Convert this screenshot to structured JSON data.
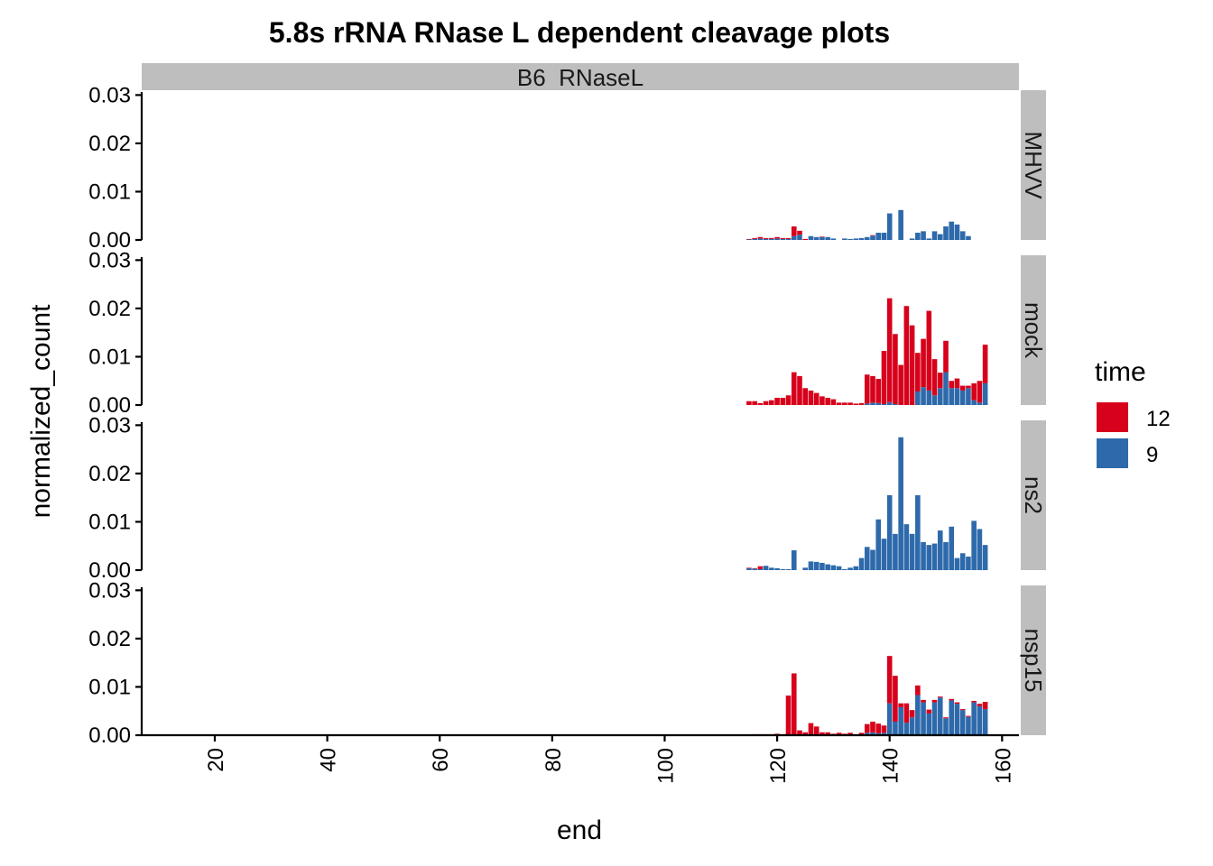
{
  "chart_data": {
    "type": "bar",
    "stacked": true,
    "title": "5.8s rRNA RNase L dependent cleavage plots",
    "xlabel": "end",
    "ylabel": "normalized_count",
    "column_facet": "B6  RNaseL",
    "xlim": [
      7,
      163
    ],
    "ylim": [
      0,
      0.031
    ],
    "x_ticks": [
      "20",
      "40",
      "60",
      "80",
      "100",
      "120",
      "140",
      "160"
    ],
    "y_ticks": [
      "0.00",
      "0.01",
      "0.02",
      "0.03"
    ],
    "grid": false,
    "legend": {
      "title": "time",
      "position": "right",
      "entries": [
        {
          "label": "12",
          "color": "#D7011B"
        },
        {
          "label": "9",
          "color": "#2E6AAB"
        }
      ]
    },
    "x": [
      115,
      116,
      117,
      118,
      119,
      120,
      121,
      122,
      123,
      124,
      125,
      126,
      127,
      128,
      129,
      130,
      131,
      132,
      133,
      134,
      135,
      136,
      137,
      138,
      139,
      140,
      141,
      142,
      143,
      144,
      145,
      146,
      147,
      148,
      149,
      150,
      151,
      152,
      153,
      154,
      155,
      156,
      157
    ],
    "panels": [
      {
        "name": "MHVV",
        "series": [
          {
            "name": "12",
            "values": [
              0.0001,
              0.0002,
              0.0003,
              0.0002,
              0.0002,
              0.0003,
              0.0002,
              0.0002,
              0.002,
              0.0008,
              0.0002,
              0,
              0,
              0.0001,
              0,
              0,
              0,
              0,
              0,
              0,
              0,
              0,
              0.0001,
              0,
              0,
              0,
              0,
              0,
              0,
              0,
              0,
              0,
              0,
              0,
              0,
              0,
              0,
              0,
              0,
              0,
              0,
              0,
              0
            ]
          },
          {
            "name": "9",
            "values": [
              0.0001,
              0.0002,
              0.0003,
              0.0002,
              0.0002,
              0.0003,
              0.0002,
              0.0002,
              0.0008,
              0.0011,
              0,
              0.0008,
              0.0006,
              0.0006,
              0.0006,
              0.0003,
              0,
              0.0003,
              0.0002,
              0.0003,
              0.0004,
              0.0006,
              0.0009,
              0.0015,
              0.0015,
              0.0055,
              0,
              0.0062,
              0,
              0.0003,
              0.0015,
              0.0018,
              0.0003,
              0.0018,
              0.0012,
              0.0028,
              0.0038,
              0.0032,
              0.0018,
              0.0008,
              0,
              0,
              0
            ]
          }
        ]
      },
      {
        "name": "mock",
        "series": [
          {
            "name": "12",
            "values": [
              0.0008,
              0.0008,
              0.0004,
              0.0008,
              0.001,
              0.0015,
              0.0015,
              0.002,
              0.0068,
              0.006,
              0.0035,
              0.003,
              0.0025,
              0.0018,
              0.0015,
              0.0012,
              0.0005,
              0.0005,
              0.0005,
              0.0003,
              0.0004,
              0.006,
              0.0055,
              0.005,
              0.011,
              0.0215,
              0.0145,
              0.0083,
              0.0205,
              0.0165,
              0.008,
              0.01,
              0.0165,
              0.0075,
              0.0032,
              0.0065,
              0.0015,
              0.002,
              0.001,
              0.0005,
              0.0035,
              0.0045,
              0.008
            ]
          },
          {
            "name": "9",
            "values": [
              0,
              0,
              0,
              0,
              0,
              0,
              0,
              0,
              0,
              0,
              0,
              0,
              0,
              0,
              0,
              0,
              0,
              0,
              0,
              0,
              0,
              0.0003,
              0.0005,
              0.0004,
              0.0002,
              0.0006,
              0.0002,
              0,
              0,
              0,
              0.0028,
              0.0037,
              0.003,
              0.002,
              0.0035,
              0.0068,
              0.0035,
              0.0035,
              0.003,
              0.0035,
              0.001,
              0.0005,
              0.0045
            ]
          }
        ]
      },
      {
        "name": "ns2",
        "series": [
          {
            "name": "12",
            "values": [
              0.0001,
              0.0001,
              0.0006,
              0,
              0,
              0,
              0,
              0,
              0,
              0,
              0,
              0,
              0,
              0,
              0,
              0,
              0,
              0,
              0,
              0,
              0,
              0,
              0,
              0,
              0,
              0,
              0,
              0,
              0,
              0,
              0,
              0,
              0,
              0,
              0,
              0,
              0,
              0,
              0,
              0,
              0,
              0,
              0
            ]
          },
          {
            "name": "9",
            "values": [
              0.0004,
              0.0003,
              0.0002,
              0.0009,
              0.0005,
              0.0004,
              0.0002,
              0.0002,
              0.0041,
              0,
              0.0005,
              0.0018,
              0.0017,
              0.0015,
              0.0012,
              0.001,
              0.0008,
              0.0002,
              0.0005,
              0.0008,
              0.0025,
              0.0048,
              0.0042,
              0.0105,
              0.0065,
              0.0155,
              0.0075,
              0.0275,
              0.0095,
              0.0075,
              0.0155,
              0.0058,
              0.0052,
              0.0055,
              0.0082,
              0.0058,
              0.009,
              0.0025,
              0.0035,
              0.0028,
              0.0102,
              0.0085,
              0.0052
            ]
          }
        ]
      },
      {
        "name": "nsp15",
        "series": [
          {
            "name": "12",
            "values": [
              0,
              0.0002,
              0.0002,
              0.0002,
              0.0002,
              0.0003,
              0.0002,
              0.0082,
              0.0128,
              0.001,
              0.0006,
              0.0025,
              0.0018,
              0.0006,
              0.0006,
              0.0003,
              0.0005,
              0.0003,
              0.0005,
              0.0002,
              0.0005,
              0.0018,
              0.0022,
              0.002,
              0.0015,
              0.0098,
              0.0095,
              0.0008,
              0.004,
              0.0015,
              0.002,
              0.0005,
              0.0008,
              0.0005,
              0.0002,
              0.0002,
              0.0003,
              0.0003,
              0.0002,
              0.0002,
              0.0003,
              0.0005,
              0.0015
            ]
          },
          {
            "name": "9",
            "values": [
              0,
              0,
              0,
              0,
              0,
              0,
              0,
              0,
              0,
              0,
              0,
              0,
              0,
              0,
              0,
              0,
              0,
              0,
              0,
              0,
              0,
              0.0005,
              0.0006,
              0.0004,
              0.0005,
              0.0066,
              0.0028,
              0.0058,
              0.0026,
              0.0037,
              0.0083,
              0.0068,
              0.0045,
              0.0068,
              0.0078,
              0.0035,
              0.0072,
              0.0065,
              0.0052,
              0.0038,
              0.0068,
              0.006,
              0.0054
            ]
          }
        ]
      }
    ]
  }
}
